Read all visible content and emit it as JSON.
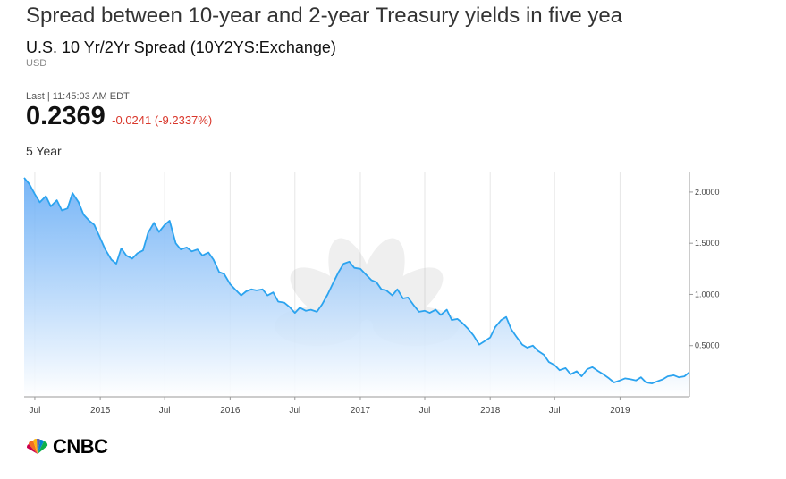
{
  "header": {
    "headline": "Spread between 10-year and 2-year Treasury yields in five yea",
    "instrument": "U.S. 10 Yr/2Yr Spread (10Y2YS:Exchange)",
    "currency": "USD"
  },
  "quote": {
    "last_label": "Last | 11:45:03 AM EDT",
    "price": "0.2369",
    "change": "-0.0241 (-9.2337%)",
    "range_label": "5 Year"
  },
  "colors": {
    "line": "#2ba3ef",
    "fill_top": "#5fa8f5",
    "fill_bottom": "#ffffff",
    "negative": "#d9372b"
  },
  "branding": {
    "logo_text": "CNBC",
    "watermark": "CNBC"
  },
  "chart_data": {
    "type": "area",
    "title": "",
    "xlabel": "",
    "ylabel": "",
    "x": [
      "2014-06-01",
      "2014-06-15",
      "2014-07-01",
      "2014-07-15",
      "2014-08-01",
      "2014-08-15",
      "2014-09-01",
      "2014-09-15",
      "2014-10-01",
      "2014-10-15",
      "2014-11-01",
      "2014-11-15",
      "2014-12-01",
      "2014-12-15",
      "2015-01-01",
      "2015-01-15",
      "2015-02-01",
      "2015-02-15",
      "2015-03-01",
      "2015-03-15",
      "2015-04-01",
      "2015-04-15",
      "2015-05-01",
      "2015-05-15",
      "2015-06-01",
      "2015-06-15",
      "2015-07-01",
      "2015-07-15",
      "2015-08-01",
      "2015-08-15",
      "2015-09-01",
      "2015-09-15",
      "2015-10-01",
      "2015-10-15",
      "2015-11-01",
      "2015-11-15",
      "2015-12-01",
      "2015-12-15",
      "2016-01-01",
      "2016-01-15",
      "2016-02-01",
      "2016-02-15",
      "2016-03-01",
      "2016-03-15",
      "2016-04-01",
      "2016-04-15",
      "2016-05-01",
      "2016-05-15",
      "2016-06-01",
      "2016-06-15",
      "2016-07-01",
      "2016-07-15",
      "2016-08-01",
      "2016-08-15",
      "2016-09-01",
      "2016-09-15",
      "2016-10-01",
      "2016-10-15",
      "2016-11-01",
      "2016-11-15",
      "2016-12-01",
      "2016-12-15",
      "2017-01-01",
      "2017-01-15",
      "2017-02-01",
      "2017-02-15",
      "2017-03-01",
      "2017-03-15",
      "2017-04-01",
      "2017-04-15",
      "2017-05-01",
      "2017-05-15",
      "2017-06-01",
      "2017-06-15",
      "2017-07-01",
      "2017-07-15",
      "2017-08-01",
      "2017-08-15",
      "2017-09-01",
      "2017-09-15",
      "2017-10-01",
      "2017-10-15",
      "2017-11-01",
      "2017-11-15",
      "2017-12-01",
      "2017-12-15",
      "2018-01-01",
      "2018-01-15",
      "2018-02-01",
      "2018-02-15",
      "2018-03-01",
      "2018-03-15",
      "2018-04-01",
      "2018-04-15",
      "2018-05-01",
      "2018-05-15",
      "2018-06-01",
      "2018-06-15",
      "2018-07-01",
      "2018-07-15",
      "2018-08-01",
      "2018-08-15",
      "2018-09-01",
      "2018-09-15",
      "2018-10-01",
      "2018-10-15",
      "2018-11-01",
      "2018-11-15",
      "2018-12-01",
      "2018-12-15",
      "2019-01-01",
      "2019-01-15",
      "2019-02-01",
      "2019-02-15",
      "2019-03-01",
      "2019-03-15",
      "2019-04-01",
      "2019-04-15",
      "2019-05-01",
      "2019-05-15",
      "2019-06-01",
      "2019-06-15",
      "2019-07-01",
      "2019-07-15"
    ],
    "series": [
      {
        "values": [
          2.14,
          2.08,
          1.98,
          1.9,
          1.96,
          1.86,
          1.92,
          1.82,
          1.84,
          1.99,
          1.9,
          1.78,
          1.72,
          1.68,
          1.55,
          1.44,
          1.34,
          1.3,
          1.45,
          1.38,
          1.35,
          1.4,
          1.43,
          1.6,
          1.7,
          1.61,
          1.68,
          1.72,
          1.5,
          1.44,
          1.46,
          1.42,
          1.44,
          1.38,
          1.41,
          1.34,
          1.22,
          1.2,
          1.1,
          1.05,
          0.99,
          1.03,
          1.05,
          1.04,
          1.05,
          0.99,
          1.02,
          0.93,
          0.92,
          0.88,
          0.82,
          0.87,
          0.84,
          0.85,
          0.83,
          0.9,
          1.0,
          1.1,
          1.22,
          1.3,
          1.32,
          1.26,
          1.25,
          1.2,
          1.14,
          1.12,
          1.05,
          1.04,
          0.99,
          1.05,
          0.96,
          0.97,
          0.89,
          0.83,
          0.84,
          0.82,
          0.85,
          0.8,
          0.85,
          0.75,
          0.76,
          0.72,
          0.66,
          0.6,
          0.51,
          0.54,
          0.58,
          0.68,
          0.75,
          0.78,
          0.66,
          0.59,
          0.51,
          0.48,
          0.5,
          0.45,
          0.41,
          0.34,
          0.31,
          0.26,
          0.28,
          0.22,
          0.25,
          0.2,
          0.27,
          0.29,
          0.25,
          0.22,
          0.18,
          0.14,
          0.16,
          0.18,
          0.17,
          0.16,
          0.19,
          0.14,
          0.13,
          0.15,
          0.17,
          0.2,
          0.21,
          0.19,
          0.2,
          0.24
        ]
      }
    ],
    "x_ticks": [
      {
        "label": "Jul",
        "date": "2014-07-01"
      },
      {
        "label": "2015",
        "date": "2015-01-01"
      },
      {
        "label": "Jul",
        "date": "2015-07-01"
      },
      {
        "label": "2016",
        "date": "2016-01-01"
      },
      {
        "label": "Jul",
        "date": "2016-07-01"
      },
      {
        "label": "2017",
        "date": "2017-01-01"
      },
      {
        "label": "Jul",
        "date": "2017-07-01"
      },
      {
        "label": "2018",
        "date": "2018-01-01"
      },
      {
        "label": "Jul",
        "date": "2018-07-01"
      },
      {
        "label": "2019",
        "date": "2019-01-01"
      }
    ],
    "y_ticks": [
      {
        "label": "0.5000",
        "value": 0.5
      },
      {
        "label": "1.0000",
        "value": 1.0
      },
      {
        "label": "1.5000",
        "value": 1.5
      },
      {
        "label": "2.0000",
        "value": 2.0
      }
    ],
    "xlim": [
      "2014-06-01",
      "2019-07-15"
    ],
    "ylim": [
      0.0,
      2.2
    ],
    "grid": true,
    "legend": "none"
  }
}
